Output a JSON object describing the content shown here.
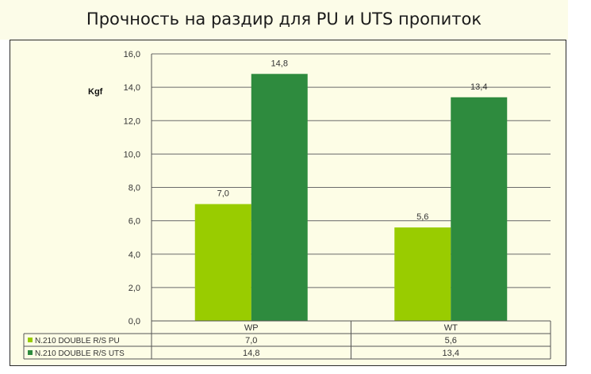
{
  "chart_data": {
    "type": "bar",
    "title": "Прочность на раздир для PU и UTS пропиток",
    "ylabel": "Kgf",
    "categories": [
      "WP",
      "WT"
    ],
    "series": [
      {
        "name": "N.210 DOUBLE R/S PU",
        "values": [
          7.0,
          5.6
        ],
        "color": "#99cc00",
        "labels": [
          "7,0",
          "5,6"
        ]
      },
      {
        "name": "N.210 DOUBLE R/S UTS",
        "values": [
          14.8,
          13.4
        ],
        "color": "#2e8b3e",
        "labels": [
          "14,8",
          "13,4"
        ]
      }
    ],
    "ylim": [
      0,
      16
    ],
    "yticks": [
      "0,0",
      "2,0",
      "4,0",
      "6,0",
      "8,0",
      "10,0",
      "12,0",
      "14,0",
      "16,0"
    ],
    "grid": true,
    "legend": "data-table-below"
  }
}
